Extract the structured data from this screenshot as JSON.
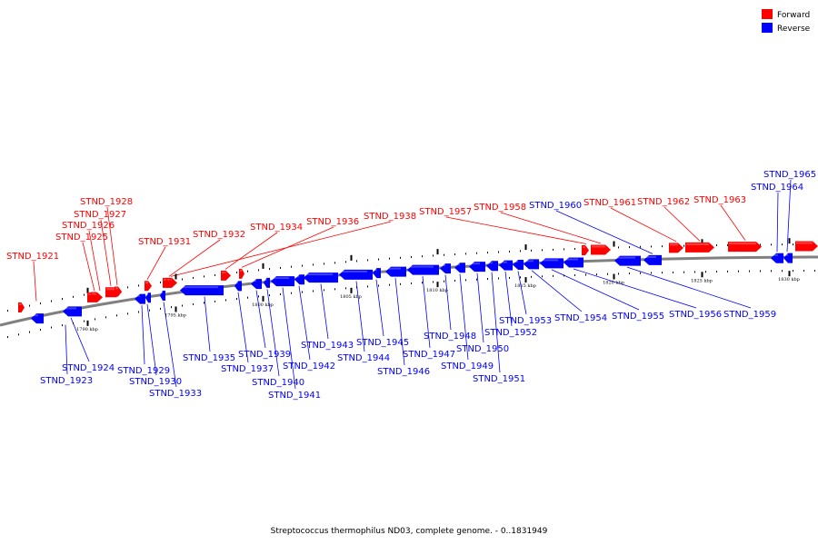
{
  "caption": "Streptococcus thermophilus ND03, complete genome. - 0..1831949",
  "legend": [
    {
      "label": "Forward",
      "color": "#ff0000"
    },
    {
      "label": "Reverse",
      "color": "#0000ff"
    }
  ],
  "colors": {
    "forward": "#ff0000",
    "reverse": "#0000ff",
    "backbone": "#808080"
  },
  "ticks": [
    {
      "label": "1790 kbp"
    },
    {
      "label": "1795 kbp"
    },
    {
      "label": "1800 kbp"
    },
    {
      "label": "1805 kbp"
    },
    {
      "label": "1810 kbp"
    },
    {
      "label": "1815 kbp"
    },
    {
      "label": "1820 kbp"
    },
    {
      "label": "1825 kbp"
    },
    {
      "label": "1830 kbp"
    }
  ],
  "genes": [
    {
      "name": "STND_1921",
      "strand": "forward"
    },
    {
      "name": "STND_1923",
      "strand": "reverse"
    },
    {
      "name": "STND_1924",
      "strand": "reverse"
    },
    {
      "name": "STND_1925",
      "strand": "forward"
    },
    {
      "name": "STND_1926",
      "strand": "forward"
    },
    {
      "name": "STND_1927",
      "strand": "forward"
    },
    {
      "name": "STND_1928",
      "strand": "forward"
    },
    {
      "name": "STND_1929",
      "strand": "reverse"
    },
    {
      "name": "STND_1930",
      "strand": "reverse"
    },
    {
      "name": "STND_1931",
      "strand": "forward"
    },
    {
      "name": "STND_1932",
      "strand": "forward"
    },
    {
      "name": "STND_1933",
      "strand": "reverse"
    },
    {
      "name": "STND_1934",
      "strand": "forward"
    },
    {
      "name": "STND_1935",
      "strand": "reverse"
    },
    {
      "name": "STND_1936",
      "strand": "forward"
    },
    {
      "name": "STND_1937",
      "strand": "reverse"
    },
    {
      "name": "STND_1938",
      "strand": "forward"
    },
    {
      "name": "STND_1939",
      "strand": "reverse"
    },
    {
      "name": "STND_1940",
      "strand": "reverse"
    },
    {
      "name": "STND_1941",
      "strand": "reverse"
    },
    {
      "name": "STND_1942",
      "strand": "reverse"
    },
    {
      "name": "STND_1943",
      "strand": "reverse"
    },
    {
      "name": "STND_1944",
      "strand": "reverse"
    },
    {
      "name": "STND_1945",
      "strand": "reverse"
    },
    {
      "name": "STND_1946",
      "strand": "reverse"
    },
    {
      "name": "STND_1947",
      "strand": "reverse"
    },
    {
      "name": "STND_1948",
      "strand": "reverse"
    },
    {
      "name": "STND_1949",
      "strand": "reverse"
    },
    {
      "name": "STND_1950",
      "strand": "reverse"
    },
    {
      "name": "STND_1951",
      "strand": "reverse"
    },
    {
      "name": "STND_1952",
      "strand": "reverse"
    },
    {
      "name": "STND_1953",
      "strand": "reverse"
    },
    {
      "name": "STND_1954",
      "strand": "reverse"
    },
    {
      "name": "STND_1955",
      "strand": "reverse"
    },
    {
      "name": "STND_1956",
      "strand": "reverse"
    },
    {
      "name": "STND_1957",
      "strand": "forward"
    },
    {
      "name": "STND_1958",
      "strand": "forward"
    },
    {
      "name": "STND_1959",
      "strand": "reverse"
    },
    {
      "name": "STND_1960",
      "strand": "reverse"
    },
    {
      "name": "STND_1961",
      "strand": "forward"
    },
    {
      "name": "STND_1962",
      "strand": "forward"
    },
    {
      "name": "STND_1963",
      "strand": "forward"
    },
    {
      "name": "STND_1964",
      "strand": "reverse"
    },
    {
      "name": "STND_1965",
      "strand": "reverse"
    }
  ]
}
